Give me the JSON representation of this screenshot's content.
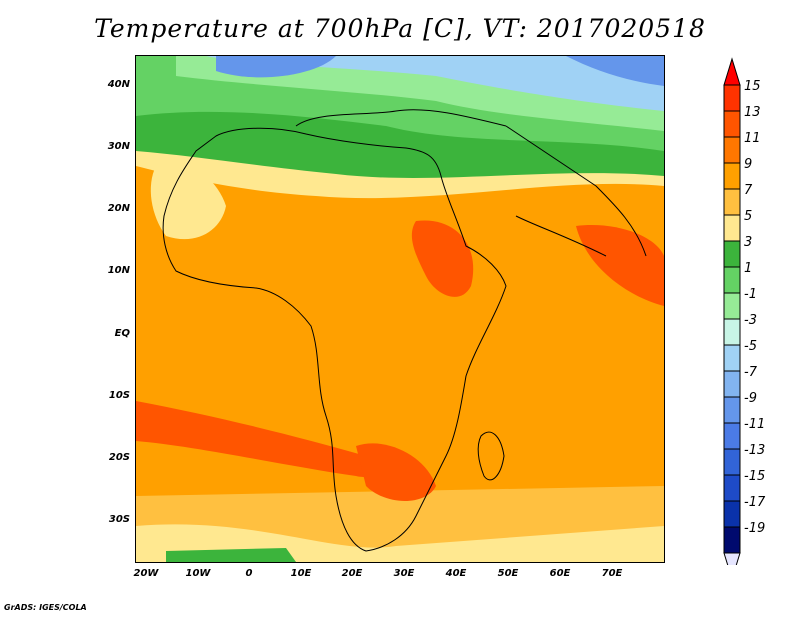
{
  "title": "Temperature at 700hPa [C], VT: 2017020518",
  "footer": "GrADS: IGES/COLA",
  "map": {
    "region": "Africa",
    "lat_labels": [
      "40N",
      "30N",
      "20N",
      "10N",
      "EQ",
      "10S",
      "20S",
      "30S"
    ],
    "lon_labels": [
      "20W",
      "10W",
      "0",
      "10E",
      "20E",
      "30E",
      "40E",
      "50E",
      "60E",
      "70E"
    ]
  },
  "colorbar": {
    "labels": [
      "15",
      "13",
      "11",
      "9",
      "7",
      "5",
      "3",
      "1",
      "-1",
      "-3",
      "-5",
      "-7",
      "-9",
      "-11",
      "-13",
      "-15",
      "-17",
      "-19"
    ],
    "colors": [
      "#ff0000",
      "#ff3300",
      "#ff5500",
      "#ff7700",
      "#ffa000",
      "#ffc040",
      "#ffe890",
      "#3cb43c",
      "#64d264",
      "#96eb96",
      "#c8f5e6",
      "#a0d2f5",
      "#82b4f0",
      "#6496eb",
      "#4b7be6",
      "#3264d7",
      "#1e4bc8",
      "#0a32aa",
      "#000a6e",
      "#e6e6ff"
    ]
  }
}
